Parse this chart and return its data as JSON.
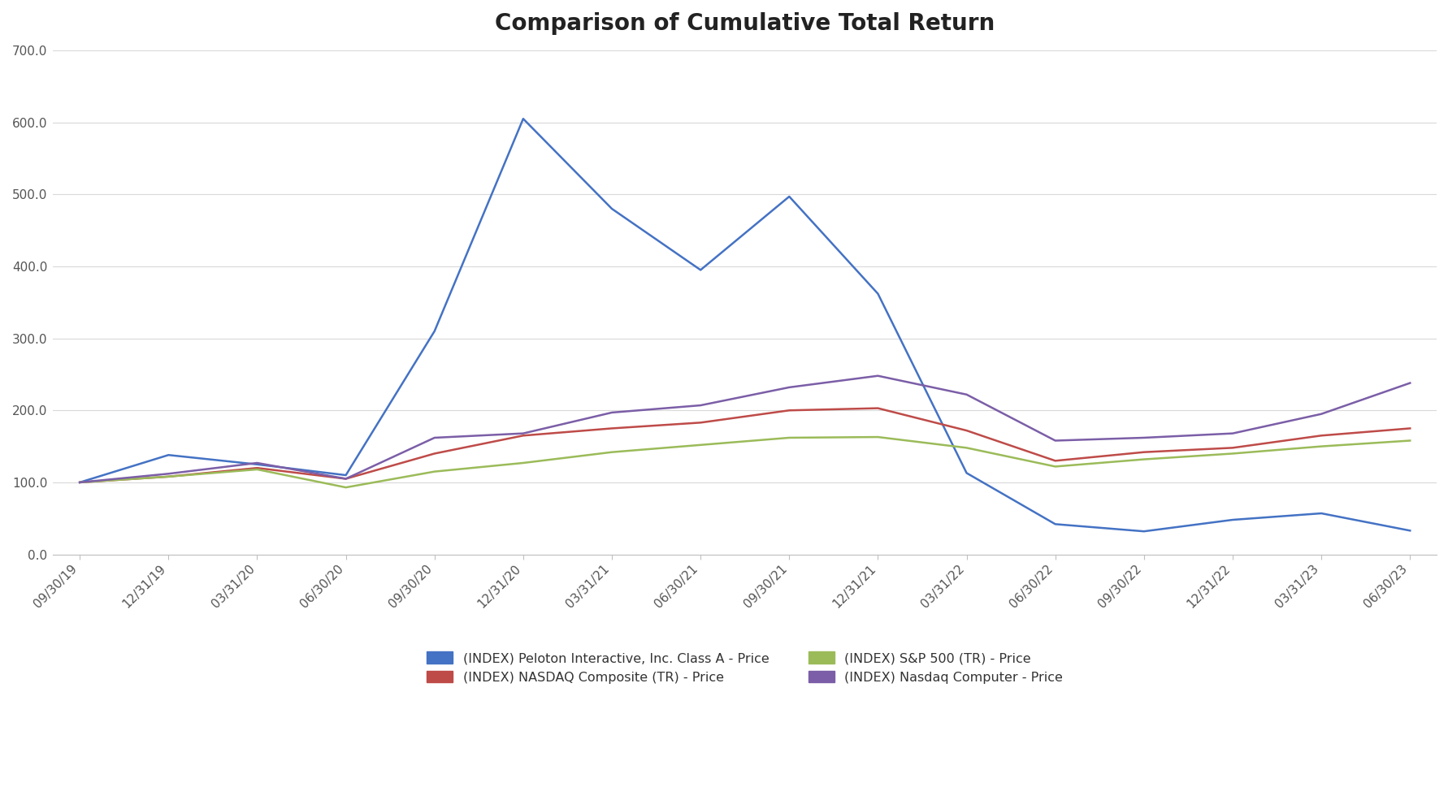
{
  "title": "Comparison of Cumulative Total Return",
  "title_fontsize": 20,
  "background_color": "#ffffff",
  "x_labels": [
    "09/30/19",
    "12/31/19",
    "03/31/20",
    "06/30/20",
    "09/30/20",
    "12/31/20",
    "03/31/21",
    "06/30/21",
    "09/30/21",
    "12/31/21",
    "03/31/22",
    "06/30/22",
    "09/30/22",
    "12/31/22",
    "03/31/23",
    "06/30/23"
  ],
  "ylim": [
    0,
    700
  ],
  "yticks": [
    0,
    100,
    200,
    300,
    400,
    500,
    600,
    700
  ],
  "ytick_labels": [
    "0.0",
    "100.0",
    "200.0",
    "300.0",
    "400.0",
    "500.0",
    "600.0",
    "700.0"
  ],
  "series": [
    {
      "label": "(INDEX) Peloton Interactive, Inc. Class A - Price",
      "color": "#4472C4",
      "linewidth": 1.8,
      "values": [
        100,
        138,
        125,
        110,
        310,
        605,
        480,
        395,
        497,
        362,
        113,
        42,
        32,
        48,
        57,
        33
      ]
    },
    {
      "label": "(INDEX) NASDAQ Composite (TR) - Price",
      "color": "#BE4B48",
      "linewidth": 1.8,
      "values": [
        100,
        108,
        120,
        105,
        140,
        165,
        175,
        183,
        200,
        203,
        172,
        130,
        142,
        148,
        165,
        175
      ]
    },
    {
      "label": "(INDEX) S&P 500 (TR) - Price",
      "color": "#9BBB59",
      "linewidth": 1.8,
      "values": [
        100,
        108,
        118,
        93,
        115,
        127,
        142,
        152,
        162,
        163,
        148,
        122,
        132,
        140,
        150,
        158
      ]
    },
    {
      "label": "(INDEX) Nasdaq Computer - Price",
      "color": "#7B5EA7",
      "linewidth": 1.8,
      "values": [
        100,
        112,
        127,
        105,
        162,
        168,
        197,
        207,
        232,
        248,
        222,
        158,
        162,
        168,
        195,
        238
      ]
    }
  ],
  "legend_ncol": 2,
  "legend_fontsize": 11.5,
  "grid_color": "#d9d9d9",
  "tick_fontsize": 11,
  "axis_color": "#c0c0c0"
}
